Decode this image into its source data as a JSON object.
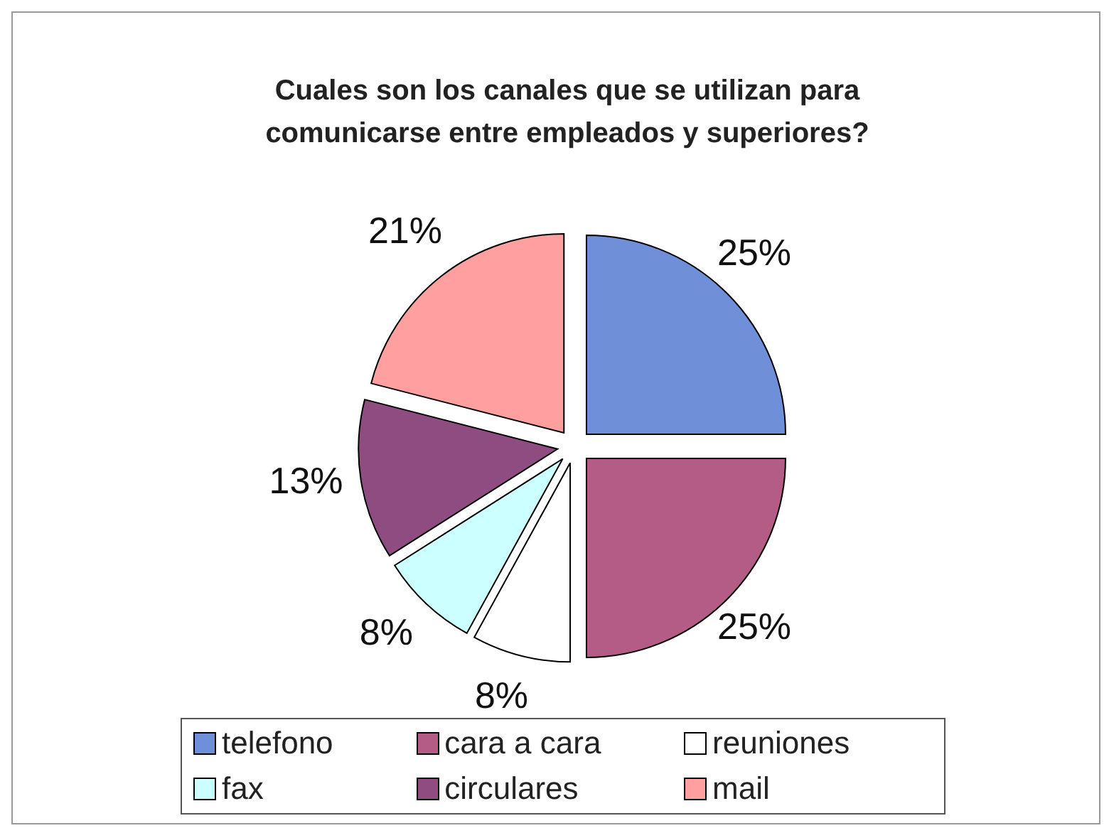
{
  "chart_data": {
    "type": "pie",
    "title": "Cuales son los canales que se utilizan para comunicarse entre empleados y superiores?",
    "categories": [
      "telefono",
      "cara a cara",
      "reuniones",
      "fax",
      "circulares",
      "mail"
    ],
    "values": [
      25,
      25,
      8,
      8,
      13,
      21
    ],
    "colors": [
      "#6f8fd8",
      "#b35c86",
      "#ffffff",
      "#ccffff",
      "#8e4c80",
      "#ff9f9f"
    ],
    "value_labels": [
      "25%",
      "25%",
      "8%",
      "8%",
      "13%",
      "21%"
    ],
    "legend": "bottom"
  }
}
